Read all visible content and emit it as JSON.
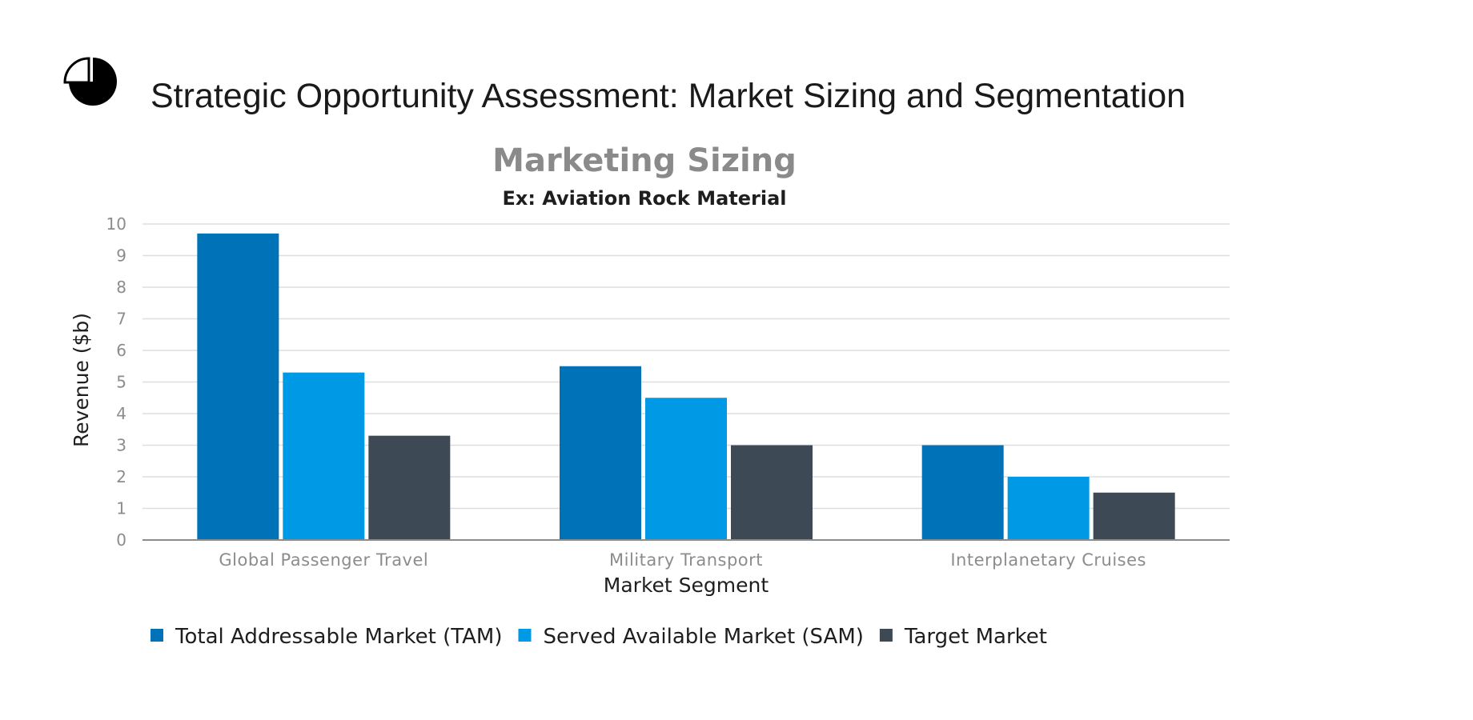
{
  "slide": {
    "title": "Strategic Opportunity Assessment: Market Sizing and Segmentation",
    "icon": "pie-chart-icon"
  },
  "chart_data": {
    "type": "bar",
    "title": "Marketing Sizing",
    "subtitle": "Ex: Aviation Rock Material",
    "xlabel": "Market Segment",
    "ylabel": "Revenue ($b)",
    "ylim": [
      0,
      10
    ],
    "yticks": [
      "0",
      "1",
      "2",
      "3",
      "4",
      "5",
      "6",
      "7",
      "8",
      "9",
      "10"
    ],
    "grid": true,
    "legend_position": "bottom-left",
    "categories": [
      "Global Passenger Travel",
      "Military Transport",
      "Interplanetary Cruises"
    ],
    "series": [
      {
        "name": "Total Addressable Market (TAM)",
        "color": "#0072b8",
        "values": [
          9.7,
          5.5,
          3.0
        ]
      },
      {
        "name": "Served Available Market (SAM)",
        "color": "#0099e6",
        "values": [
          5.3,
          4.5,
          2.0
        ]
      },
      {
        "name": "Target Market",
        "color": "#3d4a56",
        "values": [
          3.3,
          3.0,
          1.5
        ]
      }
    ]
  }
}
